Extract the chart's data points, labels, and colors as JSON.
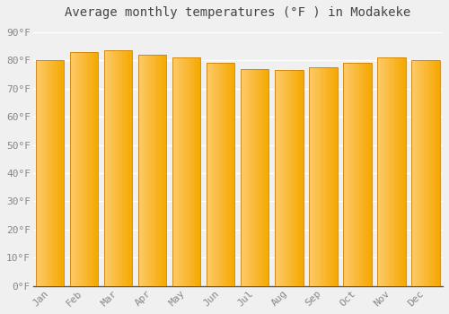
{
  "title": "Average monthly temperatures (°F ) in Modakeke",
  "months": [
    "Jan",
    "Feb",
    "Mar",
    "Apr",
    "May",
    "Jun",
    "Jul",
    "Aug",
    "Sep",
    "Oct",
    "Nov",
    "Dec"
  ],
  "values": [
    80,
    83,
    83.5,
    82,
    81,
    79,
    77,
    76.5,
    77.5,
    79,
    81,
    80
  ],
  "bar_color_left": "#FDCA6A",
  "bar_color_right": "#F5A800",
  "bar_edge_color": "#C8820A",
  "background_color": "#F0F0F0",
  "grid_color": "#FFFFFF",
  "yticks": [
    0,
    10,
    20,
    30,
    40,
    50,
    60,
    70,
    80,
    90
  ],
  "ylim": [
    0,
    93
  ],
  "title_fontsize": 10,
  "tick_fontsize": 8,
  "font_color": "#888888",
  "title_color": "#444444"
}
